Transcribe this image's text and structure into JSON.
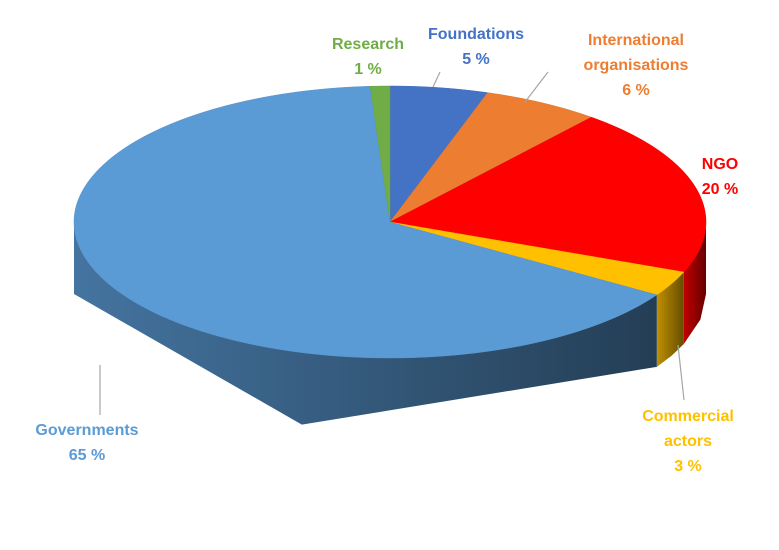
{
  "chart_data": {
    "type": "pie",
    "categories": [
      "Foundations",
      "International organisations",
      "NGO",
      "Commercial actors",
      "Governments",
      "Research"
    ],
    "values": [
      5,
      6,
      20,
      3,
      65,
      1
    ],
    "value_labels": [
      "5 %",
      "6 %",
      "20 %",
      "3 %",
      "65 %",
      "1 %"
    ],
    "colors": [
      "#4472c4",
      "#ed7d31",
      "#ff0000",
      "#ffc000",
      "#5b9bd5",
      "#70ad47"
    ]
  }
}
